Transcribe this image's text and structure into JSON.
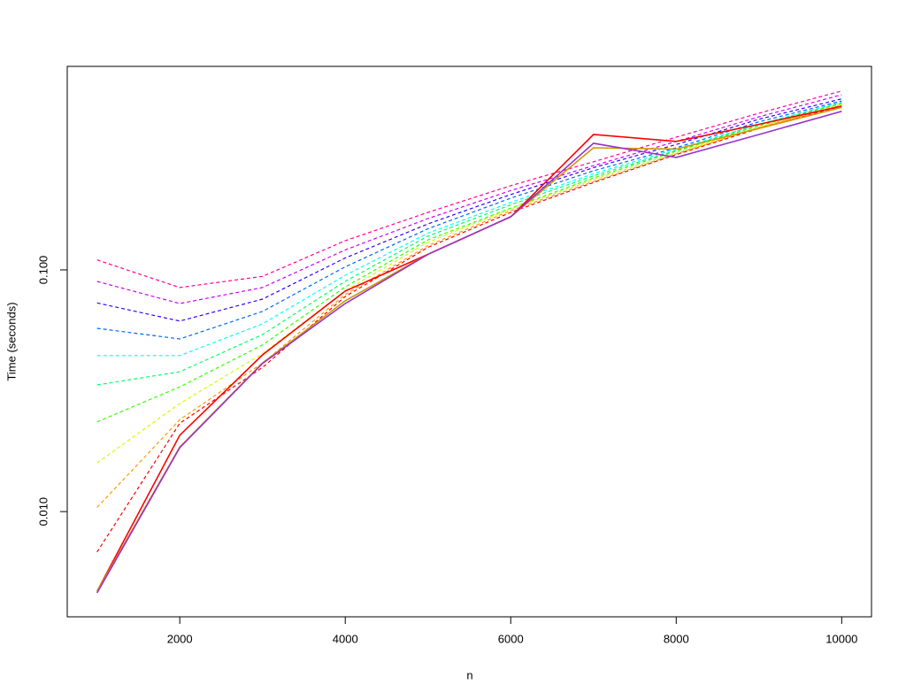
{
  "chart_data": {
    "type": "line",
    "xlabel": "n",
    "ylabel": "Time (seconds)",
    "x": [
      1000,
      2000,
      3000,
      4000,
      5000,
      6000,
      7000,
      8000,
      9000,
      10000
    ],
    "xlim": [
      640,
      10360
    ],
    "xticks": [
      2000,
      4000,
      6000,
      8000,
      10000
    ],
    "ylim": [
      0.00367,
      0.695
    ],
    "ylog": true,
    "yticks": [
      {
        "value": 0.01,
        "label": "0.010"
      },
      {
        "value": 0.1,
        "label": "0.100"
      }
    ],
    "series": [
      {
        "color": "#FF0099",
        "dashed": true,
        "values": [
          0.11,
          0.0845,
          0.094,
          0.132,
          0.173,
          0.223,
          0.28,
          0.354,
          0.445,
          0.55
        ]
      },
      {
        "color": "#CC00FF",
        "dashed": true,
        "values": [
          0.0896,
          0.0726,
          0.0845,
          0.121,
          0.163,
          0.213,
          0.27,
          0.34,
          0.43,
          0.53
        ]
      },
      {
        "color": "#3300FF",
        "dashed": true,
        "values": [
          0.073,
          0.0614,
          0.0757,
          0.112,
          0.155,
          0.205,
          0.265,
          0.33,
          0.42,
          0.51
        ]
      },
      {
        "color": "#0066FF",
        "dashed": true,
        "values": [
          0.0573,
          0.0518,
          0.0673,
          0.103,
          0.148,
          0.198,
          0.257,
          0.32,
          0.41,
          0.5
        ]
      },
      {
        "color": "#00FFFF",
        "dashed": true,
        "values": [
          0.0442,
          0.0442,
          0.0598,
          0.095,
          0.142,
          0.19,
          0.25,
          0.316,
          0.4,
          0.495
        ]
      },
      {
        "color": "#00FF66",
        "dashed": true,
        "values": [
          0.0334,
          0.0379,
          0.054,
          0.0897,
          0.138,
          0.186,
          0.245,
          0.312,
          0.4,
          0.49
        ]
      },
      {
        "color": "#33FF00",
        "dashed": true,
        "values": [
          0.0235,
          0.0328,
          0.0489,
          0.085,
          0.133,
          0.18,
          0.24,
          0.31,
          0.395,
          0.488
        ]
      },
      {
        "color": "#CCFF00",
        "dashed": true,
        "values": [
          0.0159,
          0.028,
          0.045,
          0.082,
          0.13,
          0.179,
          0.236,
          0.305,
          0.39,
          0.484
        ]
      },
      {
        "color": "#FF9900",
        "dashed": true,
        "values": [
          0.0104,
          0.024,
          0.0412,
          0.079,
          0.126,
          0.176,
          0.232,
          0.302,
          0.388,
          0.48
        ]
      },
      {
        "color": "#FF0000",
        "dashed": true,
        "values": [
          0.0068,
          0.0232,
          0.0395,
          0.0776,
          0.124,
          0.173,
          0.23,
          0.3,
          0.385,
          0.476
        ]
      },
      {
        "color": "#FF0000",
        "dashed": false,
        "values": [
          0.00468,
          0.0207,
          0.0445,
          0.0817,
          0.116,
          0.166,
          0.363,
          0.34,
          0.4,
          0.476
        ]
      },
      {
        "color": "#CC9900",
        "dashed": false,
        "values": [
          0.00468,
          0.0185,
          0.0412,
          0.0745,
          0.116,
          0.166,
          0.32,
          0.316,
          0.385,
          0.47
        ]
      },
      {
        "color": "#9933CC",
        "dashed": false,
        "values": [
          0.00461,
          0.0184,
          0.041,
          0.0726,
          0.116,
          0.166,
          0.334,
          0.292,
          0.363,
          0.453
        ]
      }
    ]
  }
}
